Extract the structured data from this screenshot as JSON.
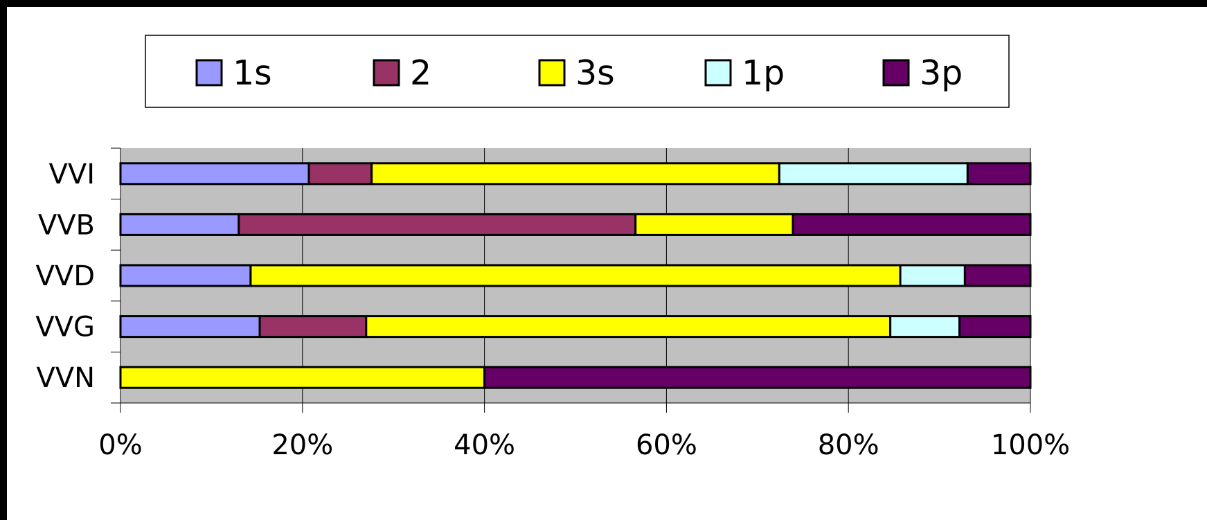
{
  "chart_data": {
    "type": "bar",
    "orientation": "horizontal",
    "stacking": "percent",
    "title": "",
    "xlabel": "",
    "ylabel": "",
    "categories": [
      "VVI",
      "VVB",
      "VVD",
      "VVG",
      "VVN"
    ],
    "xlim": [
      0,
      100
    ],
    "x_ticks": [
      "0%",
      "20%",
      "40%",
      "60%",
      "80%",
      "100%"
    ],
    "grid": true,
    "legend_position": "top",
    "series": [
      {
        "name": "1s",
        "color": "#9999FF",
        "values": [
          20.7,
          13.0,
          14.3,
          15.3,
          0
        ]
      },
      {
        "name": "2",
        "color": "#993366",
        "values": [
          6.9,
          43.6,
          0,
          11.7,
          0
        ]
      },
      {
        "name": "3s",
        "color": "#FFFF00",
        "values": [
          44.8,
          17.3,
          71.4,
          57.6,
          40.0
        ]
      },
      {
        "name": "1p",
        "color": "#CCFFFF",
        "values": [
          20.7,
          0,
          7.1,
          7.6,
          0
        ]
      },
      {
        "name": "3p",
        "color": "#660066",
        "values": [
          6.9,
          26.1,
          7.2,
          7.8,
          60.0
        ]
      }
    ],
    "colors": {
      "background": "#FFFFFF",
      "plot_area": "#C0C0C0",
      "border": "#000000"
    }
  }
}
